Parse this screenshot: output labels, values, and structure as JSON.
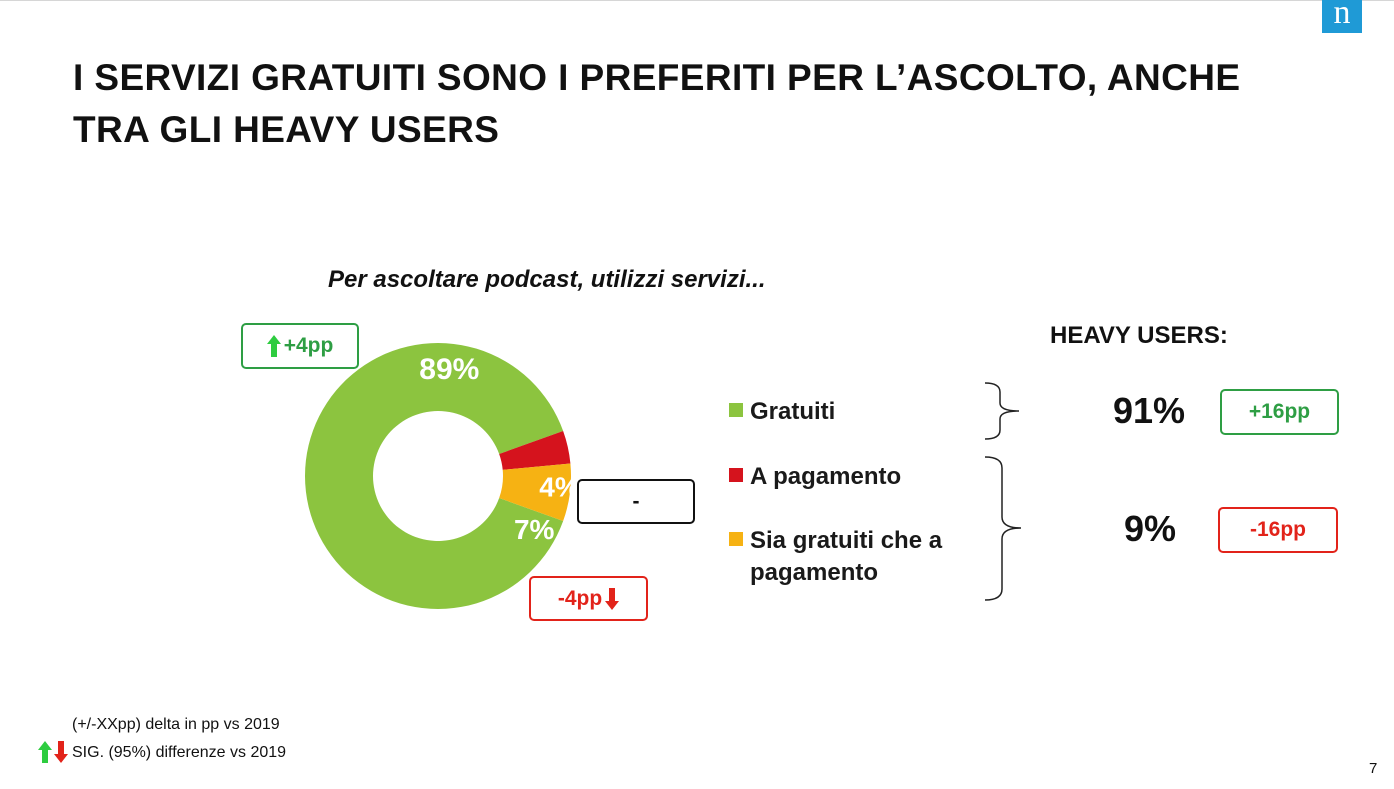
{
  "logo": {
    "letter": "n"
  },
  "title": "I SERVIZI GRATUITI SONO I PREFERITI PER L’ASCOLTO, ANCHE TRA GLI HEAVY USERS",
  "chart_data": {
    "type": "pie",
    "subtitle": "Per ascoltare podcast, utilizzi servizi...",
    "categories": [
      "Gratuiti",
      "A pagamento",
      "Sia gratuiti che a pagamento"
    ],
    "values": [
      89,
      4,
      7
    ],
    "value_labels": [
      "89%",
      "4%",
      "7%"
    ],
    "colors": [
      "#8cc43f",
      "#d5131d",
      "#f6b213"
    ],
    "donut": true,
    "deltas": [
      "+4pp",
      "-",
      "-4pp"
    ]
  },
  "deltas": {
    "gratuiti": "+4pp",
    "a_pagamento": "-",
    "sia": "-4pp"
  },
  "heavy_users": {
    "heading": "HEAVY USERS:",
    "gratuiti_pct": "91%",
    "gratuiti_delta": "+16pp",
    "pagamento_pct": "9%",
    "pagamento_delta": "-16pp"
  },
  "footnotes": {
    "delta_note": "(+/-XXpp) delta in pp vs 2019",
    "sig_note": "SIG. (95%) differenze vs 2019"
  },
  "page_number": "7"
}
